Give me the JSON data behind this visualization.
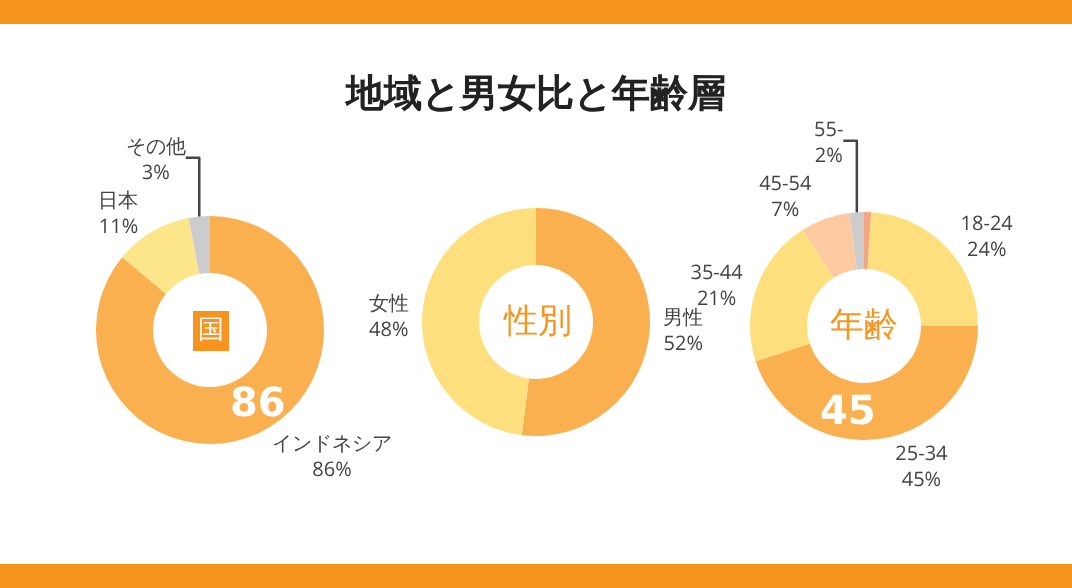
{
  "chart_data": [
    {
      "type": "other",
      "title": "地域と男女比と年齢層"
    },
    {
      "type": "donut",
      "categories": [
        "インドネシア",
        "日本",
        "その他"
      ],
      "values": [
        86,
        11,
        3
      ],
      "value_labels": [
        "86%",
        "11%",
        "3%"
      ],
      "colors": [
        "#fbb04f",
        "#fde68a",
        "#cccccc"
      ],
      "annotations": [
        "国",
        "86"
      ],
      "legend": false
    },
    {
      "type": "donut",
      "categories": [
        "男性",
        "女性"
      ],
      "values": [
        52,
        48
      ],
      "value_labels": [
        "52%",
        "48%"
      ],
      "colors": [
        "#fbb04f",
        "#fedf7e"
      ],
      "annotations": [
        "性別"
      ],
      "legend": false
    },
    {
      "type": "donut",
      "categories": [
        null,
        "18-24",
        "25-34",
        "35-44",
        "45-54",
        "55-"
      ],
      "values": [
        1,
        24,
        45,
        21,
        7,
        2
      ],
      "value_labels": [
        null,
        "24%",
        "45%",
        "21%",
        "7%",
        "2%"
      ],
      "colors": [
        "#f4a582",
        "#fedf7e",
        "#fbb04f",
        "#fedf7e",
        "#fcc9a0",
        "#cccccc"
      ],
      "annotations": [
        "年齢",
        "45"
      ],
      "legend": false
    }
  ]
}
